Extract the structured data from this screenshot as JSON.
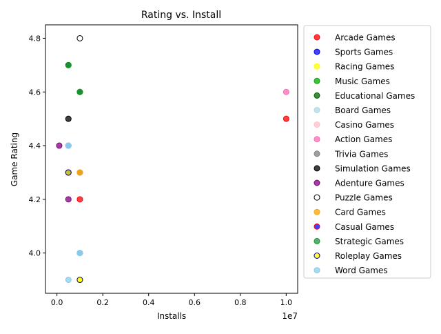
{
  "chart_data": {
    "type": "scatter",
    "title": "Rating vs. Install",
    "xlabel": "Installs",
    "ylabel": "Game Rating",
    "x_offset_label": "1e7",
    "xlim": [
      -0.05,
      1.05
    ],
    "ylim": [
      3.85,
      4.85
    ],
    "x_tick_values": [
      0.0,
      0.2,
      0.4,
      0.6,
      0.8,
      1.0
    ],
    "x_tick_labels": [
      "0.0",
      "0.2",
      "0.4",
      "0.6",
      "0.8",
      "1.0"
    ],
    "y_tick_values": [
      4.0,
      4.2,
      4.4,
      4.6,
      4.8
    ],
    "y_tick_labels": [
      "4.0",
      "4.2",
      "4.4",
      "4.6",
      "4.8"
    ],
    "grid": false,
    "legend_position": "outside-right",
    "series": [
      {
        "name": "Arcade Games",
        "color": "#ff0000",
        "hollow": false,
        "points": [
          {
            "x": 1.0,
            "y": 4.5
          },
          {
            "x": 0.1,
            "y": 4.2
          }
        ]
      },
      {
        "name": "Sports Games",
        "color": "#0000ff",
        "hollow": false,
        "points": [
          {
            "x": 0.1,
            "y": 4.0
          },
          {
            "x": 0.05,
            "y": 4.4
          }
        ]
      },
      {
        "name": "Racing Games",
        "color": "#ffff00",
        "hollow": false,
        "points": [
          {
            "x": 0.1,
            "y": 3.9
          },
          {
            "x": 0.1,
            "y": 4.3
          }
        ]
      },
      {
        "name": "Music Games",
        "color": "#00aa00",
        "hollow": false,
        "points": [
          {
            "x": 0.05,
            "y": 4.7
          },
          {
            "x": 0.1,
            "y": 4.6
          }
        ]
      },
      {
        "name": "Educational Games",
        "color": "#006400",
        "hollow": false,
        "points": [
          {
            "x": 0.1,
            "y": 4.6
          },
          {
            "x": 0.05,
            "y": 4.7
          }
        ]
      },
      {
        "name": "Board Games",
        "color": "#add8e6",
        "hollow": false,
        "points": [
          {
            "x": 0.05,
            "y": 4.4
          },
          {
            "x": 0.1,
            "y": 4.0
          }
        ]
      },
      {
        "name": "Casino Games",
        "color": "#ffc0cb",
        "hollow": false,
        "points": [
          {
            "x": 0.1,
            "y": 4.3
          }
        ]
      },
      {
        "name": "Action Games",
        "color": "#ff69b4",
        "hollow": false,
        "points": [
          {
            "x": 1.0,
            "y": 4.6
          }
        ]
      },
      {
        "name": "Trivia Games",
        "color": "#808080",
        "hollow": false,
        "points": [
          {
            "x": 0.1,
            "y": 4.3
          }
        ]
      },
      {
        "name": "Simulation Games",
        "color": "#000000",
        "hollow": false,
        "points": [
          {
            "x": 0.05,
            "y": 4.5
          },
          {
            "x": 0.05,
            "y": 4.3
          }
        ]
      },
      {
        "name": "Adenture Games",
        "color": "#800080",
        "hollow": false,
        "points": [
          {
            "x": 0.01,
            "y": 4.4
          },
          {
            "x": 0.05,
            "y": 4.2
          }
        ]
      },
      {
        "name": "Puzzle Games",
        "color": "#000000",
        "hollow": true,
        "points": [
          {
            "x": 0.1,
            "y": 4.8
          }
        ]
      },
      {
        "name": "Card Games",
        "color": "#ffa500",
        "hollow": false,
        "points": [
          {
            "x": 0.1,
            "y": 4.3
          }
        ]
      },
      {
        "name": "Casual Games",
        "color": "#0000ff",
        "edge": "#ff0000",
        "hollow": false,
        "points": [
          {
            "x": 0.05,
            "y": 4.3
          }
        ]
      },
      {
        "name": "Strategic Games",
        "color": "#2e8b57",
        "edge": "#00aa00",
        "hollow": false,
        "points": [
          {
            "x": 0.05,
            "y": 4.7
          },
          {
            "x": 0.1,
            "y": 4.6
          }
        ]
      },
      {
        "name": "Roleplay Games",
        "color": "#ffff00",
        "edge": "#000080",
        "hollow": false,
        "points": [
          {
            "x": 0.1,
            "y": 3.9
          },
          {
            "x": 0.05,
            "y": 4.3
          }
        ]
      },
      {
        "name": "Word Games",
        "color": "#87ceeb",
        "hollow": false,
        "points": [
          {
            "x": 0.05,
            "y": 3.9
          },
          {
            "x": 0.05,
            "y": 4.4
          },
          {
            "x": 0.1,
            "y": 4.0
          }
        ]
      }
    ]
  }
}
